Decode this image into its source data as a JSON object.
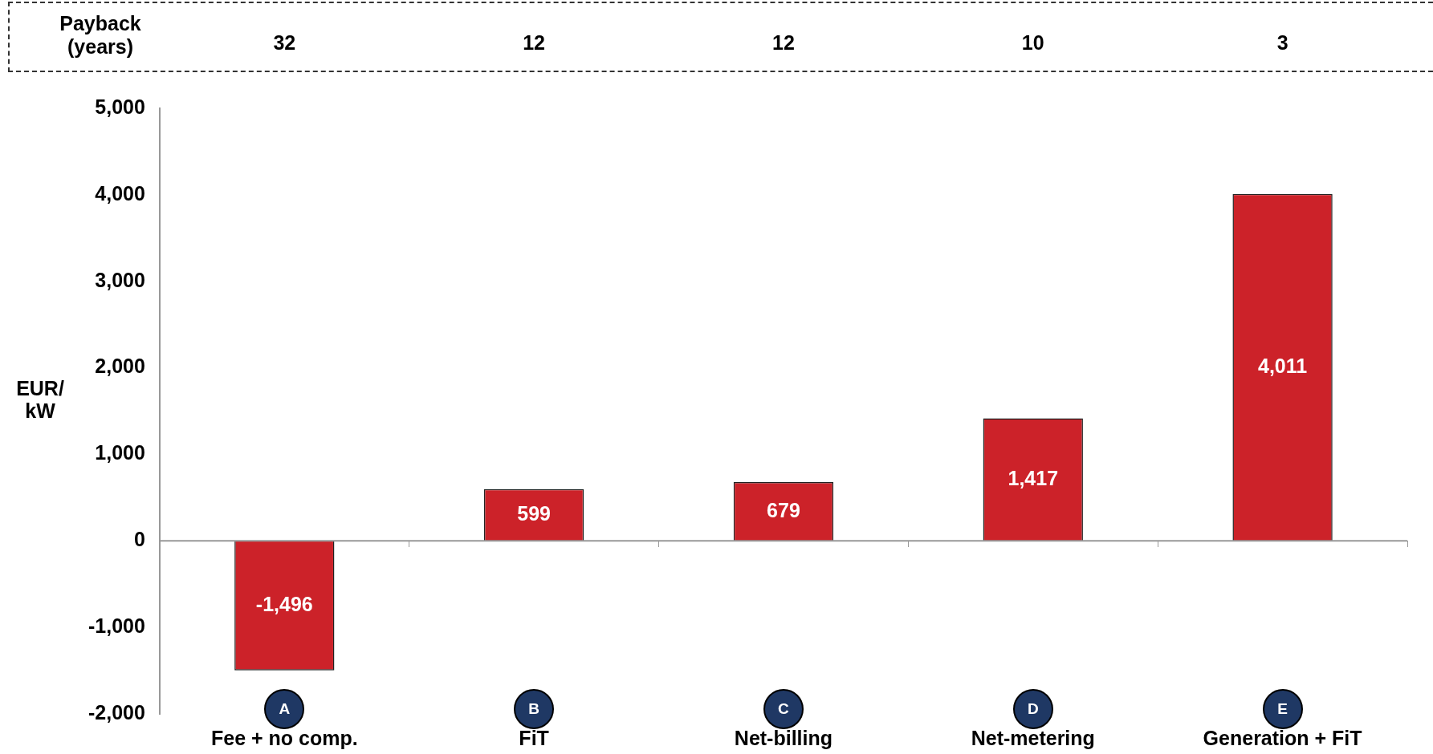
{
  "chart_data": {
    "type": "bar",
    "ylabel": "EUR/\nkW",
    "categories": [
      "Fee + no comp.",
      "FiT",
      "Net-billing",
      "Net-metering",
      "Generation + FiT"
    ],
    "values": [
      -1496,
      599,
      679,
      1417,
      4011
    ],
    "color": "#cc2229",
    "ylim": [
      -2000,
      5000
    ],
    "yticks": [
      {
        "value": -2000,
        "label": "-2,000"
      },
      {
        "value": -1000,
        "label": "-1,000"
      },
      0,
      {
        "value": 1000,
        "label": "1,000"
      },
      {
        "value": 2000,
        "label": "2,000"
      },
      {
        "value": 3000,
        "label": "3,000"
      },
      {
        "value": 4000,
        "label": "4,000"
      },
      {
        "value": 5000,
        "label": "5,000"
      }
    ],
    "value_labels": [
      "-1,496",
      "599",
      "679",
      "1,417",
      "4,011"
    ],
    "grid": false,
    "legend": false,
    "ref_lines": [
      {
        "axis": "y",
        "value": 0,
        "color": "#999999"
      }
    ],
    "annotations": [
      "Payback\n(years)",
      "32",
      "12",
      "12",
      "10",
      "3",
      "A",
      "B",
      "C",
      "D",
      "E"
    ]
  }
}
